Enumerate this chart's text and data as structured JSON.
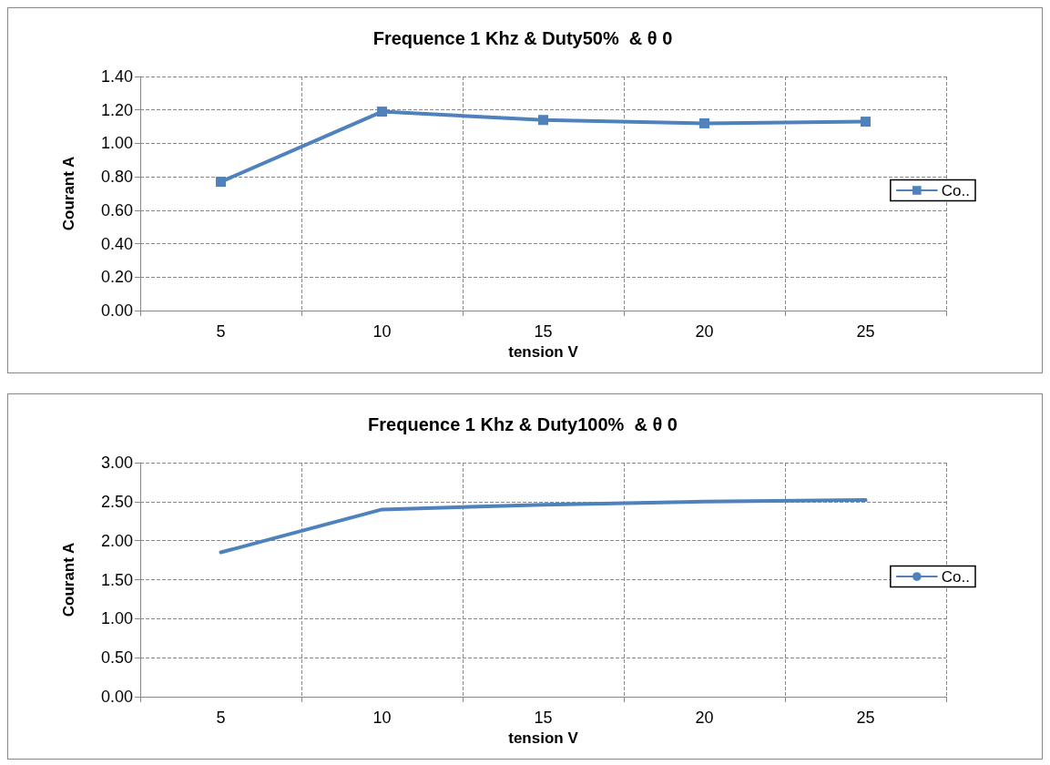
{
  "chart_data": [
    {
      "type": "line",
      "title": "Frequence 1 Khz & Duty50%  & θ 0",
      "xlabel": "tension V",
      "ylabel": "Courant A",
      "categories": [
        "5",
        "10",
        "15",
        "20",
        "25"
      ],
      "series": [
        {
          "name": "Co..",
          "color": "#4f81bd",
          "values": [
            0.77,
            1.19,
            1.14,
            1.12,
            1.13
          ]
        }
      ],
      "ylim": [
        0,
        1.4
      ],
      "yticks": [
        {
          "value": 0,
          "label": "0.00"
        },
        {
          "value": 0.2,
          "label": "0.20"
        },
        {
          "value": 0.4,
          "label": "0.40"
        },
        {
          "value": 0.6,
          "label": "0.60"
        },
        {
          "value": 0.8,
          "label": "0.80"
        },
        {
          "value": 1.0,
          "label": "1.00"
        },
        {
          "value": 1.2,
          "label": "1.20"
        },
        {
          "value": 1.4,
          "label": "1.40"
        }
      ],
      "grid": true,
      "legend": "right",
      "marker": "square",
      "line_style": "solid"
    },
    {
      "type": "line",
      "title": "Frequence 1 Khz & Duty100%  & θ 0",
      "xlabel": "tension V",
      "ylabel": "Courant A",
      "categories": [
        "5",
        "10",
        "15",
        "20",
        "25"
      ],
      "series": [
        {
          "name": "Co..",
          "color": "#4f81bd",
          "values": [
            1.85,
            2.4,
            2.46,
            2.5,
            2.52
          ]
        }
      ],
      "ylim": [
        0,
        3
      ],
      "yticks": [
        {
          "value": 0,
          "label": "0.00"
        },
        {
          "value": 0.5,
          "label": "0.50"
        },
        {
          "value": 1.0,
          "label": "1.00"
        },
        {
          "value": 1.5,
          "label": "1.50"
        },
        {
          "value": 2.0,
          "label": "2.00"
        },
        {
          "value": 2.5,
          "label": "2.50"
        },
        {
          "value": 3.0,
          "label": "3.00"
        }
      ],
      "grid": true,
      "legend": "right",
      "marker": "none",
      "line_style": "solid"
    }
  ]
}
